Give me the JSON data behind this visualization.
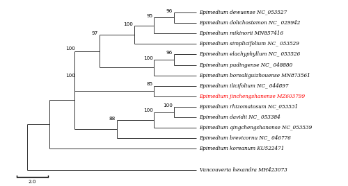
{
  "taxa": [
    {
      "name": "Epimedium dewuense NC_053527",
      "y": 15,
      "color": "black"
    },
    {
      "name": "Epimedium dolichostemon NC_ 029942",
      "y": 14,
      "color": "black"
    },
    {
      "name": "Epimedium mikinorii MN857416",
      "y": 13,
      "color": "black"
    },
    {
      "name": "Epimedium simplicifolium NC_ 053529",
      "y": 12,
      "color": "black"
    },
    {
      "name": "Epimedium elachyphyllum NC_ 053526",
      "y": 11,
      "color": "black"
    },
    {
      "name": "Epimedium pudingense NC_ 048880",
      "y": 10,
      "color": "black"
    },
    {
      "name": "Epimedium borealiguizhouense MN873561",
      "y": 9,
      "color": "black"
    },
    {
      "name": "Epimedium ilicifolium NC_ 044897",
      "y": 8,
      "color": "black"
    },
    {
      "name": "Epimedium jinchengshanense MZ603799",
      "y": 7,
      "color": "red"
    },
    {
      "name": "Epimedium rhizomatosum NC_053531",
      "y": 6,
      "color": "black"
    },
    {
      "name": "Epimedium davidii NC_ 053384",
      "y": 5,
      "color": "black"
    },
    {
      "name": "Epimedium qingchengshanense NC_053539",
      "y": 4,
      "color": "black"
    },
    {
      "name": "Epimedium brevicornu NC_ 046776",
      "y": 3,
      "color": "black"
    },
    {
      "name": "Epimedium koreanum KU522471",
      "y": 2,
      "color": "black"
    },
    {
      "name": "Vancouveria hexandra MH423073",
      "y": 0,
      "color": "black"
    }
  ],
  "figsize": [
    5.0,
    2.68
  ],
  "dpi": 100,
  "fontsize": 5.2,
  "bootstrap_fontsize": 5.2,
  "line_color": "#333333",
  "line_width": 0.7,
  "tip_x": 7.5,
  "xlim": [
    -0.3,
    13.5
  ],
  "ylim": [
    -1.0,
    16.0
  ],
  "scale_bar_x1": 0.3,
  "scale_bar_x2": 1.55,
  "scale_bar_y": -0.7,
  "scale_bar_label": "2.0"
}
